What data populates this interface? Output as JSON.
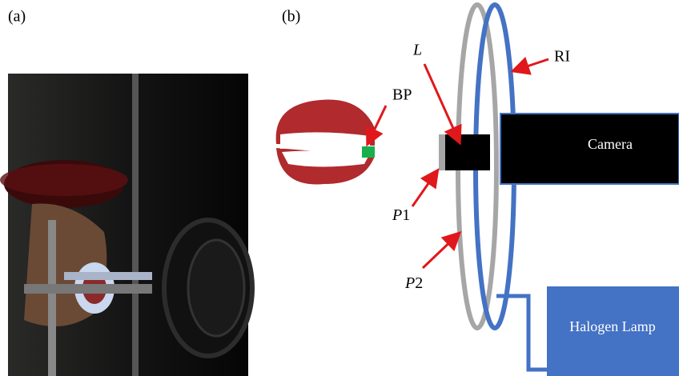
{
  "panels": {
    "a": "(a)",
    "b": "(b)"
  },
  "labels": {
    "L": "L",
    "RI": "RI",
    "BP": "BP",
    "camera": "Camera",
    "p1": {
      "symbol": "P",
      "index": "1"
    },
    "p2": {
      "symbol": "P",
      "index": "2"
    },
    "lamp": "Halogen Lamp"
  }
}
